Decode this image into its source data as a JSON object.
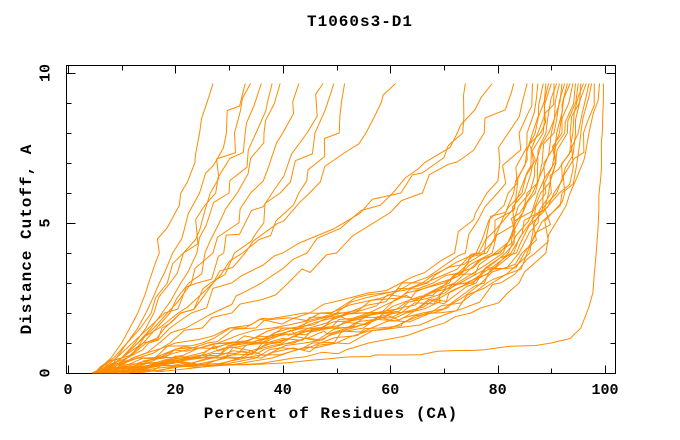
{
  "title": "T1060s3-D1",
  "colors": {
    "curve": "#ff8c00",
    "axis": "#000000",
    "text": "#000000",
    "background": "#ffffff"
  },
  "chart_data": {
    "type": "line",
    "title": "T1060s3-D1",
    "xlabel": "Percent of Residues (CA)",
    "ylabel": "Distance Cutoff, A",
    "xlim": [
      0,
      100
    ],
    "ylim": [
      0,
      10
    ],
    "x_major_ticks": [
      0,
      20,
      40,
      60,
      80,
      100
    ],
    "x_minor_step": 10,
    "y_major_ticks": [
      0,
      5,
      10
    ],
    "y_minor_step": 1,
    "grid": false,
    "legend": "none",
    "y_grid": [
      0,
      0.5,
      1,
      1.5,
      2,
      3,
      4,
      6,
      8,
      9.65
    ],
    "series": [
      {
        "x": [
          5,
          8,
          10,
          11.5,
          13,
          15,
          17,
          21,
          24.5,
          27
        ]
      },
      {
        "x": [
          5.5,
          9,
          11,
          13,
          14.5,
          17,
          19.5,
          24.5,
          29.5,
          33
        ]
      },
      {
        "x": [
          6,
          10,
          12.5,
          14.5,
          16,
          19,
          21.5,
          26.5,
          31,
          34
        ]
      },
      {
        "x": [
          5,
          8.5,
          11,
          13.5,
          15.5,
          18.5,
          21.5,
          27.5,
          33,
          36
        ]
      },
      {
        "x": [
          6.5,
          10,
          13,
          15.5,
          17.5,
          21,
          24,
          30,
          35,
          38
        ]
      },
      {
        "x": [
          5,
          11,
          14,
          16.5,
          19,
          22.5,
          25.5,
          31.5,
          36.5,
          39.5
        ]
      },
      {
        "x": [
          5.5,
          10,
          13,
          16,
          18.5,
          23,
          27,
          34,
          40,
          43
        ]
      },
      {
        "x": [
          5,
          9,
          12,
          15,
          18,
          24,
          29,
          38,
          44.5,
          47.5
        ]
      },
      {
        "x": [
          6,
          11,
          14.5,
          18,
          21,
          26.5,
          31,
          39.5,
          46,
          49.5
        ]
      },
      {
        "x": [
          5,
          10,
          14,
          17.5,
          21,
          27,
          32.5,
          43,
          50.5,
          51.5
        ]
      },
      {
        "x": [
          5,
          10,
          13.5,
          17,
          20.5,
          27,
          33,
          45,
          55.5,
          61
        ]
      },
      {
        "x": [
          6,
          11,
          15,
          19,
          23,
          30.5,
          40,
          62,
          73.5,
          74
        ]
      },
      {
        "x": [
          5,
          12,
          17,
          22,
          27,
          36,
          44.5,
          60.5,
          72.5,
          79
        ]
      },
      {
        "x": [
          6,
          13,
          19,
          25,
          30.5,
          41,
          50,
          66,
          77.5,
          83
        ]
      },
      {
        "x": [
          4.5,
          13,
          25,
          33,
          45,
          62,
          72,
          78,
          82,
          85.5
        ]
      },
      {
        "x": [
          5,
          14,
          26,
          35,
          47,
          64,
          74,
          80,
          84,
          86.5
        ]
      },
      {
        "x": [
          5.5,
          12,
          20,
          30,
          44,
          66,
          76,
          82,
          85.5,
          87.5
        ]
      },
      {
        "x": [
          6,
          16,
          28,
          38,
          50,
          66.5,
          76.5,
          83,
          86.5,
          88.5
        ]
      },
      {
        "x": [
          4.5,
          17,
          29,
          39,
          51,
          67,
          77,
          83.5,
          87,
          89
        ]
      },
      {
        "x": [
          5,
          18,
          30,
          40,
          52,
          68,
          77.5,
          84,
          87.5,
          89.5
        ]
      },
      {
        "x": [
          5.5,
          19,
          31,
          41.5,
          53,
          69,
          78,
          84.5,
          88,
          90
        ]
      },
      {
        "x": [
          6,
          20,
          32,
          43,
          54,
          70,
          79,
          85,
          88.5,
          90.5
        ]
      },
      {
        "x": [
          4.5,
          21,
          33,
          44,
          55,
          70.5,
          79.5,
          85.5,
          89,
          91
        ]
      },
      {
        "x": [
          5,
          22,
          34,
          45,
          56,
          71,
          80,
          86,
          89.5,
          91.5
        ]
      },
      {
        "x": [
          5.5,
          23,
          35,
          46,
          57,
          72,
          80.5,
          86.5,
          90,
          92
        ]
      },
      {
        "x": [
          6,
          24,
          36,
          47,
          58,
          72.5,
          81,
          87,
          90.5,
          92.5
        ]
      },
      {
        "x": [
          4.5,
          25,
          37,
          48,
          59,
          73,
          81.5,
          87.5,
          91,
          93
        ]
      },
      {
        "x": [
          5,
          26,
          38,
          49,
          60,
          74,
          82,
          88,
          91.5,
          93.5
        ]
      },
      {
        "x": [
          5.5,
          27,
          39,
          50,
          61,
          74.5,
          82.5,
          88.5,
          92,
          94
        ]
      },
      {
        "x": [
          6,
          28,
          40,
          51,
          62,
          75,
          83,
          89,
          92.5,
          94.5
        ]
      },
      {
        "x": [
          4.5,
          29,
          41,
          52,
          63,
          75.5,
          83.5,
          89.5,
          93,
          95
        ]
      },
      {
        "x": [
          5,
          30,
          42,
          53,
          64,
          76,
          84,
          90,
          93.5,
          95.5
        ]
      },
      {
        "x": [
          5.5,
          36,
          50,
          60,
          68,
          77,
          84.5,
          90.5,
          94,
          96
        ]
      },
      {
        "x": [
          6,
          32,
          44,
          55,
          66,
          77.5,
          85,
          91,
          94.5,
          96.5
        ]
      },
      {
        "x": [
          4.5,
          33,
          45.5,
          56.5,
          67.5,
          78,
          85.5,
          91.5,
          95,
          97
        ]
      },
      {
        "x": [
          5,
          35,
          47,
          58,
          69,
          79,
          86,
          92,
          95.5,
          97.5
        ]
      },
      {
        "x": [
          5.5,
          38,
          50,
          61,
          71,
          80.5,
          87,
          92.5,
          96,
          98
        ]
      },
      {
        "x": [
          6,
          42,
          56,
          67,
          75,
          84,
          89,
          93.5,
          97,
          99
        ]
      },
      {
        "points": [
          [
            5,
            0
          ],
          [
            25,
            0.2
          ],
          [
            45,
            0.42
          ],
          [
            62,
            0.6
          ],
          [
            75,
            0.75
          ],
          [
            84,
            0.9
          ],
          [
            90,
            1.0
          ],
          [
            93.5,
            1.15
          ],
          [
            95.5,
            1.5
          ],
          [
            97,
            2.2
          ],
          [
            98,
            3.3
          ],
          [
            98.7,
            4.8
          ],
          [
            99.2,
            6.5
          ],
          [
            99.5,
            8
          ],
          [
            99.7,
            9.65
          ]
        ]
      }
    ]
  }
}
